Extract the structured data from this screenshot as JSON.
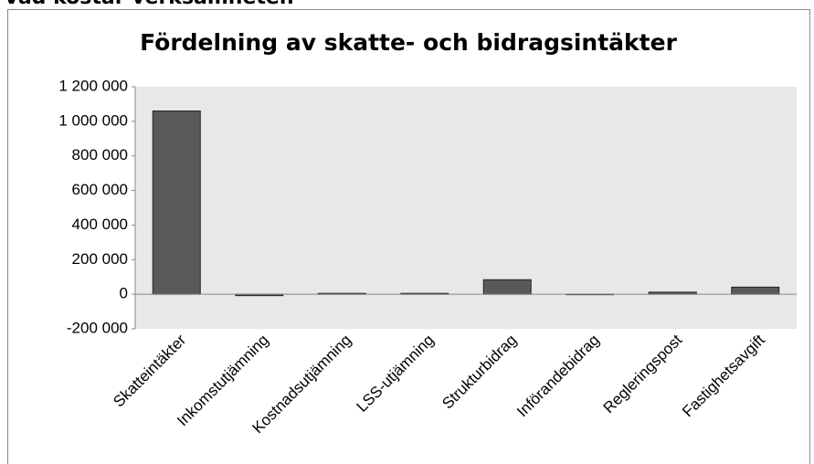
{
  "heading": "Vad kostar verksamheten",
  "chart_data": {
    "type": "bar",
    "title": "Fördelning av skatte- och bidragsintäkter",
    "categories": [
      "Skatteintäkter",
      "Inkomstutjämning",
      "Kostnadsutjämning",
      "LSS-utjämning",
      "Strukturbidrag",
      "Införandebidrag",
      "Regleringspost",
      "Fastighetsavgift"
    ],
    "values": [
      1060000,
      -8000,
      5000,
      5000,
      84000,
      0,
      12000,
      41000
    ],
    "color": "#595959",
    "ylim": [
      -200000,
      1200000
    ],
    "yticks": [
      {
        "value": -200000,
        "label": "-200 000"
      },
      0,
      {
        "value": 200000,
        "label": "200 000"
      },
      {
        "value": 400000,
        "label": "400 000"
      },
      {
        "value": 600000,
        "label": "600 000"
      },
      {
        "value": 800000,
        "label": "800 000"
      },
      {
        "value": 1000000,
        "label": "1 000 000"
      },
      {
        "value": 1200000,
        "label": "1 200 000"
      }
    ],
    "grid": false
  }
}
